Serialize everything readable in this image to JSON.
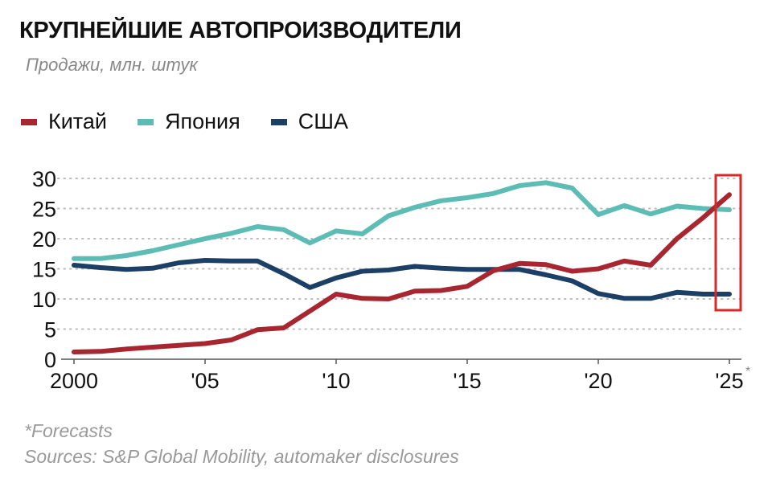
{
  "title": "КРУПНЕЙШИЕ АВТОПРОИЗВОДИТЕЛИ",
  "subtitle": "Продажи, млн. штук",
  "footnote": "*Forecasts",
  "sources": "Sources: S&P Global Mobility, automaker disclosures",
  "chart_data": {
    "type": "line",
    "x": [
      2000,
      2001,
      2002,
      2003,
      2004,
      2005,
      2006,
      2007,
      2008,
      2009,
      2010,
      2011,
      2012,
      2013,
      2014,
      2015,
      2016,
      2017,
      2018,
      2019,
      2020,
      2021,
      2022,
      2023,
      2024,
      2025
    ],
    "xticks": [
      {
        "value": 2000,
        "label": "2000"
      },
      {
        "value": 2005,
        "label": "'05"
      },
      {
        "value": 2010,
        "label": "'10"
      },
      {
        "value": 2015,
        "label": "'15"
      },
      {
        "value": 2020,
        "label": "'20"
      },
      {
        "value": 2025,
        "label": "'25"
      }
    ],
    "xtick_suffix_last": "*",
    "yticks": [
      0,
      5,
      10,
      15,
      20,
      25,
      30
    ],
    "ylim": [
      0,
      30
    ],
    "xlim": [
      2000,
      2025
    ],
    "grid": "horizontal-dotted",
    "legend_placement": "top-left",
    "highlight": {
      "x": 2025,
      "color": "#d42a2a"
    },
    "series": [
      {
        "name": "Китай",
        "color": "#a8262f",
        "values": [
          1.2,
          1.3,
          1.7,
          2.0,
          2.3,
          2.6,
          3.2,
          4.9,
          5.2,
          8.0,
          10.8,
          10.1,
          10.0,
          11.3,
          11.4,
          12.1,
          14.7,
          15.9,
          15.7,
          14.6,
          15.0,
          16.3,
          15.6,
          20.0,
          23.5,
          27.3
        ]
      },
      {
        "name": "Япония",
        "color": "#5dbdb5",
        "values": [
          16.7,
          16.7,
          17.2,
          18.0,
          19.0,
          20.0,
          20.9,
          22.0,
          21.5,
          19.3,
          21.3,
          20.8,
          23.8,
          25.2,
          26.3,
          26.8,
          27.5,
          28.8,
          29.3,
          28.4,
          24.0,
          25.5,
          24.1,
          25.4,
          25.0,
          24.8
        ]
      },
      {
        "name": "США",
        "color": "#1c3f66",
        "values": [
          15.6,
          15.2,
          14.9,
          15.1,
          16.0,
          16.4,
          16.3,
          16.3,
          14.2,
          11.9,
          13.5,
          14.6,
          14.8,
          15.4,
          15.1,
          14.9,
          14.9,
          14.9,
          14.0,
          13.0,
          10.9,
          10.1,
          10.1,
          11.1,
          10.8,
          10.8
        ]
      }
    ]
  }
}
